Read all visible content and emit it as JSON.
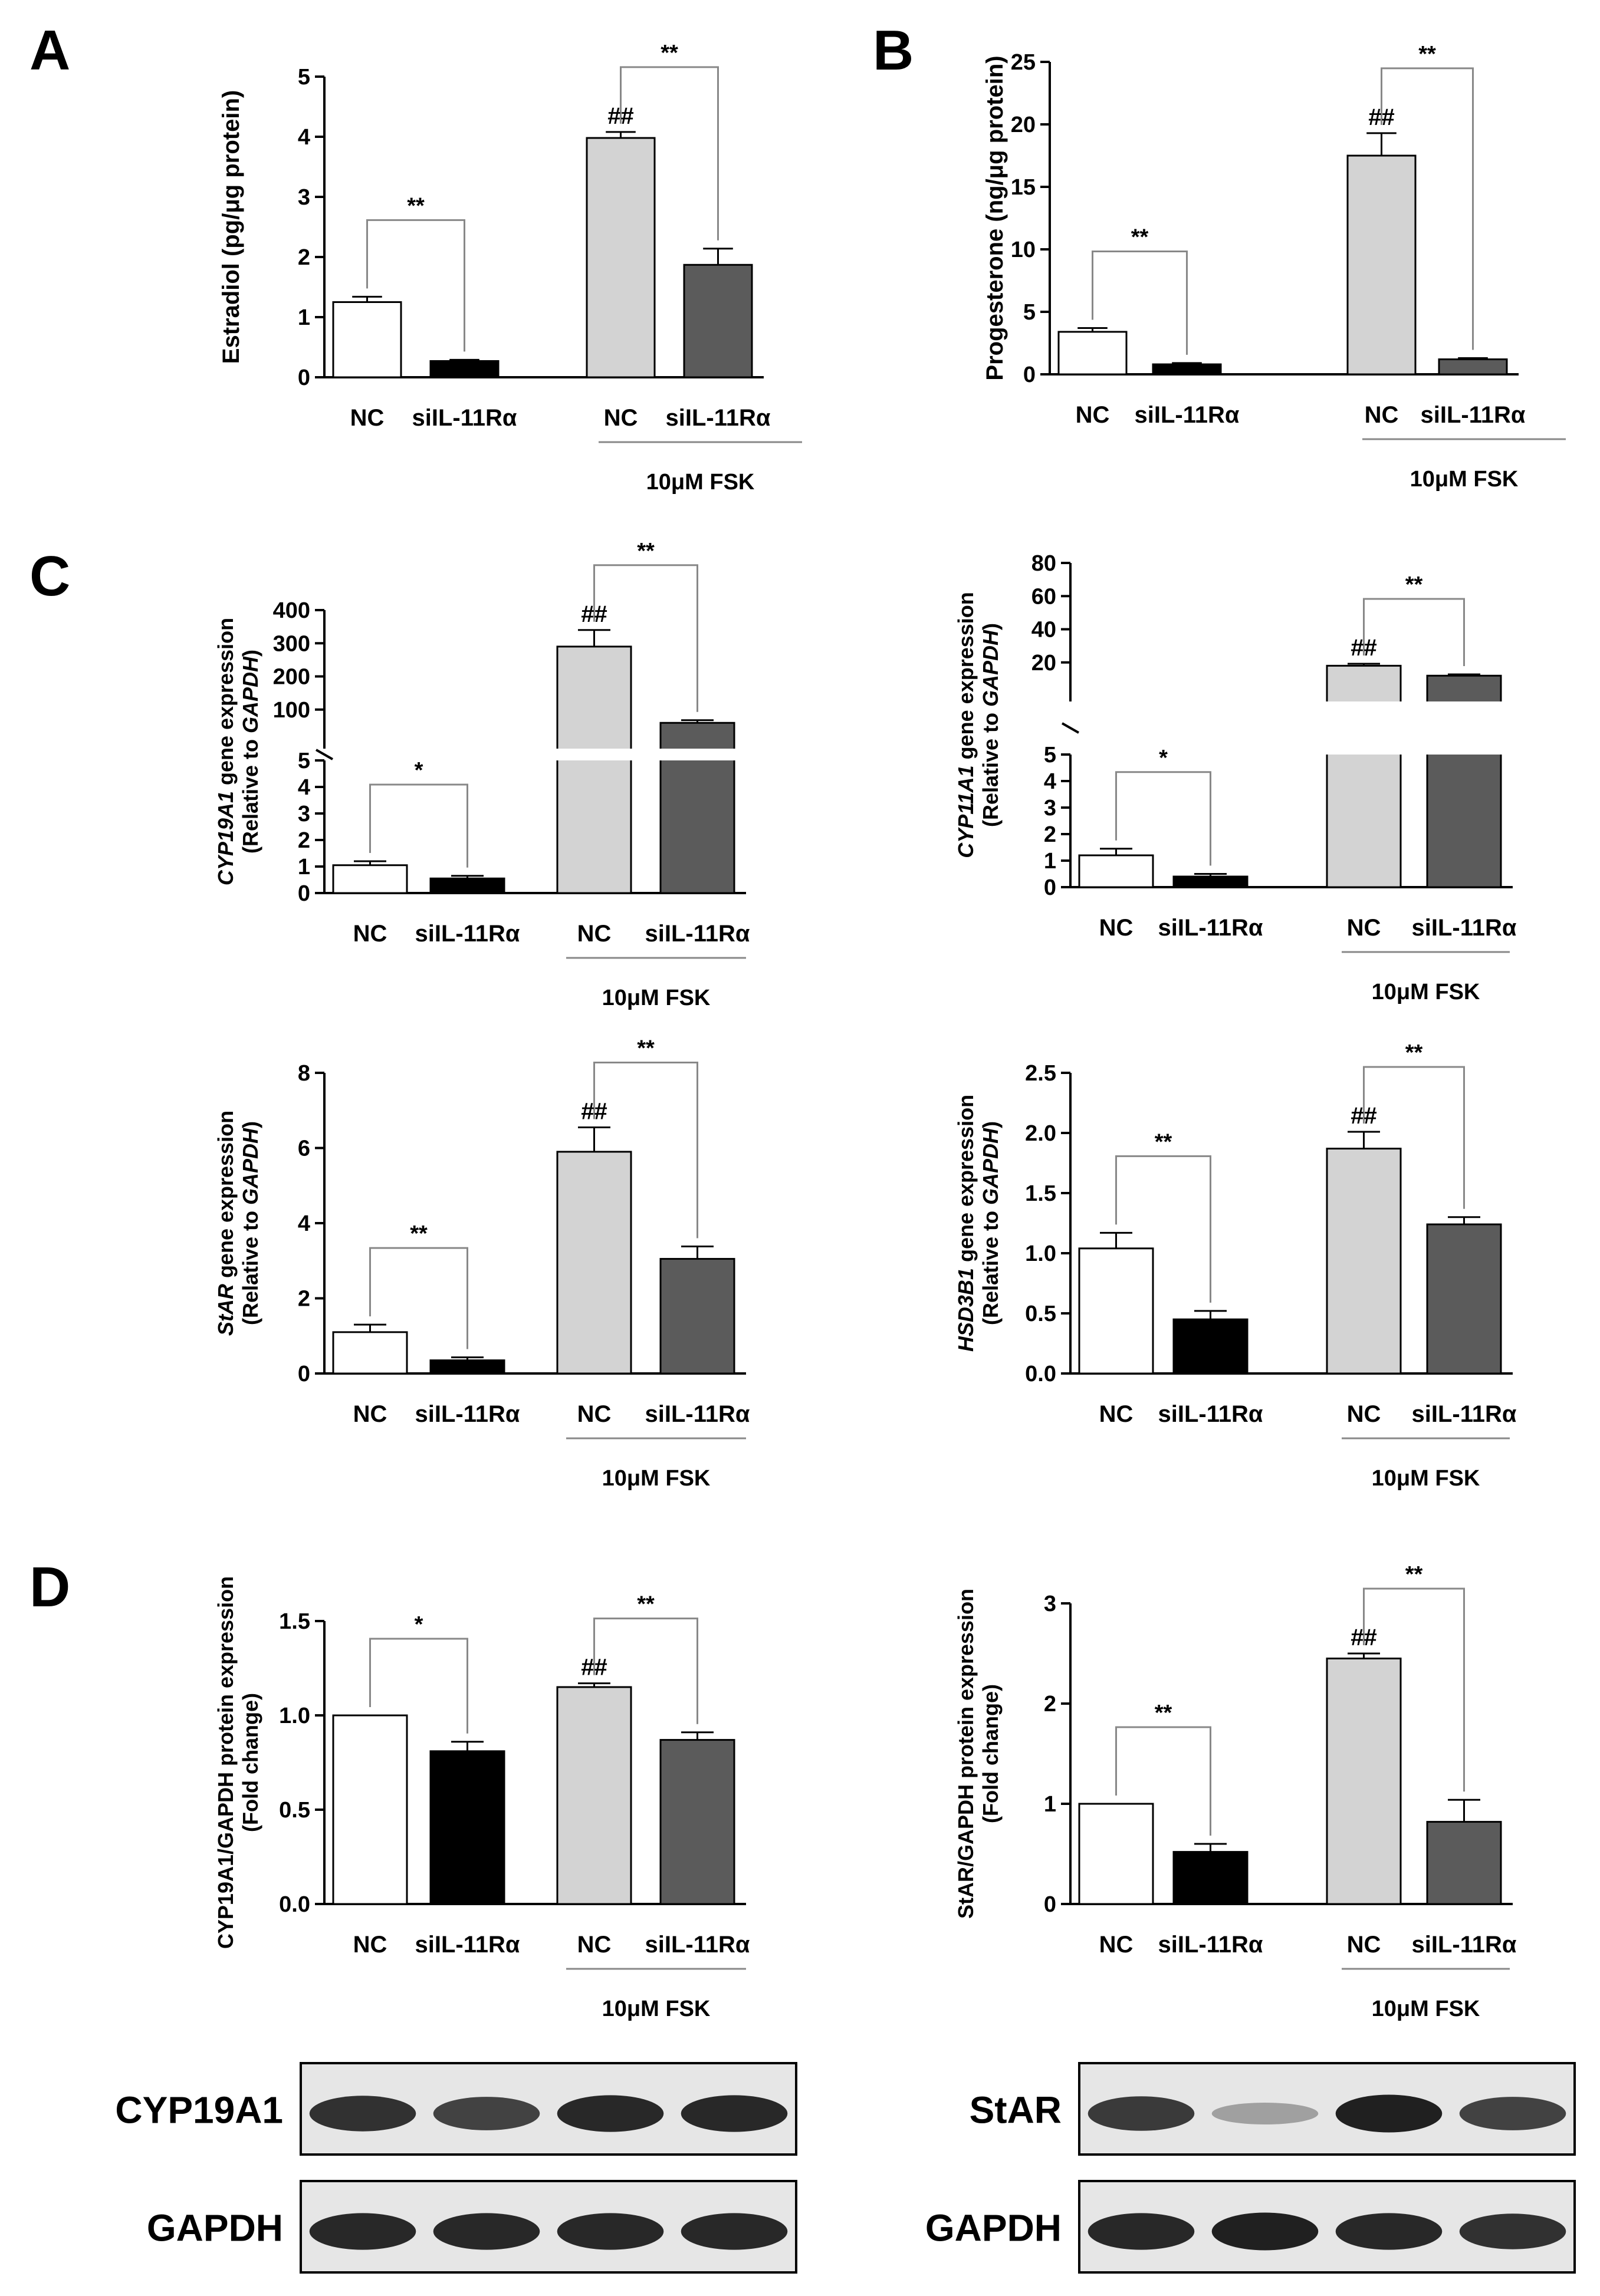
{
  "palette": {
    "NC": "#ffffff",
    "siIL-11Rα": "#000000",
    "NC_FSK": "#d3d3d3",
    "siIL-11Rα_FSK": "#5b5b5b",
    "axis": "#000000",
    "bracket": "#888888"
  },
  "group_note": "10μM FSK",
  "panels": [
    {
      "letter": "A"
    },
    {
      "letter": "B"
    },
    {
      "letter": "C"
    },
    {
      "letter": "D"
    }
  ],
  "chart_data": [
    {
      "id": "estradiol",
      "panel": "A",
      "type": "bar",
      "ylabel_parts": [
        {
          "t": "Estradiol (pg/μg protein)",
          "i": false
        }
      ],
      "categories": [
        "NC",
        "siIL-11Rα",
        "NC",
        "siIL-11Rα"
      ],
      "values": [
        1.25,
        0.27,
        3.98,
        1.87
      ],
      "errors": [
        0.09,
        0.02,
        0.1,
        0.27
      ],
      "ylim": [
        0,
        5
      ],
      "ticks": [
        0,
        1,
        2,
        3,
        4,
        5
      ],
      "tick_labels": [
        "0",
        "1",
        "2",
        "3",
        "4",
        "5"
      ],
      "annotations": [
        {
          "text": "**",
          "between": [
            0,
            1
          ]
        },
        {
          "text": "**",
          "between": [
            2,
            3
          ]
        },
        {
          "text": "##",
          "on": 2
        }
      ]
    },
    {
      "id": "progesterone",
      "panel": "B",
      "type": "bar",
      "ylabel_parts": [
        {
          "t": "Progesterone (ng/μg protein)",
          "i": false
        }
      ],
      "categories": [
        "NC",
        "siIL-11Rα",
        "NC",
        "siIL-11Rα"
      ],
      "values": [
        3.4,
        0.8,
        17.5,
        1.2
      ],
      "errors": [
        0.3,
        0.1,
        1.8,
        0.1
      ],
      "ylim": [
        0,
        25
      ],
      "ticks": [
        0,
        5,
        10,
        15,
        20,
        25
      ],
      "tick_labels": [
        "0",
        "5",
        "10",
        "15",
        "20",
        "25"
      ],
      "annotations": [
        {
          "text": "**",
          "between": [
            0,
            1
          ]
        },
        {
          "text": "**",
          "between": [
            2,
            3
          ]
        },
        {
          "text": "##",
          "on": 2
        }
      ]
    },
    {
      "id": "cyp19a1-gene",
      "panel": "C",
      "type": "bar",
      "broken_axis": true,
      "ylabel_parts": [
        {
          "t": "CYP19A1",
          "i": true
        },
        {
          "t": " gene expression",
          "i": false
        }
      ],
      "ylabel2_parts": [
        {
          "t": "(Relative to ",
          "i": false
        },
        {
          "t": "GAPDH",
          "i": true
        },
        {
          "t": ")",
          "i": false
        }
      ],
      "categories": [
        "NC",
        "siIL-11Rα",
        "NC",
        "siIL-11Rα"
      ],
      "values": [
        1.05,
        0.55,
        290,
        60
      ],
      "errors": [
        0.15,
        0.1,
        50,
        8
      ],
      "lower": {
        "ylim": [
          0,
          5
        ],
        "ticks": [
          0,
          1,
          2,
          3,
          4,
          5
        ],
        "tick_labels": [
          "0",
          "1",
          "2",
          "3",
          "4",
          "5"
        ]
      },
      "upper": {
        "ylim": [
          0,
          400
        ],
        "ticks": [
          100,
          200,
          300,
          400
        ],
        "tick_labels": [
          "100",
          "200",
          "300",
          "400"
        ]
      },
      "annotations": [
        {
          "text": "*",
          "between": [
            0,
            1
          ]
        },
        {
          "text": "**",
          "between": [
            2,
            3
          ]
        },
        {
          "text": "##",
          "on": 2
        }
      ]
    },
    {
      "id": "cyp11a1-gene",
      "panel": "C",
      "type": "bar",
      "broken_axis": true,
      "ylabel_parts": [
        {
          "t": "CYP11A1",
          "i": true
        },
        {
          "t": " gene expression",
          "i": false
        }
      ],
      "ylabel2_parts": [
        {
          "t": "(Relative to ",
          "i": false
        },
        {
          "t": "GAPDH",
          "i": true
        },
        {
          "t": ")",
          "i": false
        }
      ],
      "categories": [
        "NC",
        "siIL-11Rα",
        "NC",
        "siIL-11Rα"
      ],
      "values": [
        1.2,
        0.4,
        18,
        12
      ],
      "errors": [
        0.25,
        0.1,
        1.2,
        0.8
      ],
      "lower": {
        "ylim": [
          0,
          5
        ],
        "ticks": [
          0,
          1,
          2,
          3,
          4,
          5
        ],
        "tick_labels": [
          "0",
          "1",
          "2",
          "3",
          "4",
          "5"
        ]
      },
      "upper": {
        "ylim": [
          0,
          80
        ],
        "ticks": [
          20,
          40,
          60,
          80
        ],
        "tick_labels": [
          "20",
          "40",
          "60",
          "80"
        ]
      },
      "annotations": [
        {
          "text": "*",
          "between": [
            0,
            1
          ]
        },
        {
          "text": "**",
          "between": [
            2,
            3
          ]
        },
        {
          "text": "##",
          "on": 2
        }
      ]
    },
    {
      "id": "star-gene",
      "panel": "C",
      "type": "bar",
      "ylabel_parts": [
        {
          "t": "StAR",
          "i": true
        },
        {
          "t": " gene expression",
          "i": false
        }
      ],
      "ylabel2_parts": [
        {
          "t": "(Relative to ",
          "i": false
        },
        {
          "t": "GAPDH",
          "i": true
        },
        {
          "t": ")",
          "i": false
        }
      ],
      "categories": [
        "NC",
        "siIL-11Rα",
        "NC",
        "siIL-11Rα"
      ],
      "values": [
        1.1,
        0.35,
        5.9,
        3.05
      ],
      "errors": [
        0.2,
        0.08,
        0.65,
        0.33
      ],
      "ylim": [
        0,
        8
      ],
      "ticks": [
        0,
        2,
        4,
        6,
        8
      ],
      "tick_labels": [
        "0",
        "2",
        "4",
        "6",
        "8"
      ],
      "annotations": [
        {
          "text": "**",
          "between": [
            0,
            1
          ]
        },
        {
          "text": "**",
          "between": [
            2,
            3
          ]
        },
        {
          "text": "##",
          "on": 2
        }
      ]
    },
    {
      "id": "hsd3b1-gene",
      "panel": "C",
      "type": "bar",
      "ylabel_parts": [
        {
          "t": "HSD3B1",
          "i": true
        },
        {
          "t": " gene expression",
          "i": false
        }
      ],
      "ylabel2_parts": [
        {
          "t": "(Relative to ",
          "i": false
        },
        {
          "t": "GAPDH",
          "i": true
        },
        {
          "t": ")",
          "i": false
        }
      ],
      "categories": [
        "NC",
        "siIL-11Rα",
        "NC",
        "siIL-11Rα"
      ],
      "values": [
        1.04,
        0.45,
        1.87,
        1.24
      ],
      "errors": [
        0.13,
        0.07,
        0.14,
        0.06
      ],
      "ylim": [
        0,
        2.5
      ],
      "ticks": [
        0,
        0.5,
        1,
        1.5,
        2,
        2.5
      ],
      "tick_labels": [
        "0.0",
        "0.5",
        "1.0",
        "1.5",
        "2.0",
        "2.5"
      ],
      "annotations": [
        {
          "text": "**",
          "between": [
            0,
            1
          ]
        },
        {
          "text": "**",
          "between": [
            2,
            3
          ]
        },
        {
          "text": "##",
          "on": 2
        }
      ]
    },
    {
      "id": "cyp19a1-protein",
      "panel": "D",
      "type": "bar",
      "ylabel_parts": [
        {
          "t": "CYP19A1/GAPDH protein expression",
          "i": false
        }
      ],
      "ylabel2_parts": [
        {
          "t": "(Fold change)",
          "i": false
        }
      ],
      "categories": [
        "NC",
        "siIL-11Rα",
        "NC",
        "siIL-11Rα"
      ],
      "values": [
        1.0,
        0.81,
        1.15,
        0.87
      ],
      "errors": [
        0.0,
        0.05,
        0.02,
        0.04
      ],
      "ylim": [
        0,
        1.5
      ],
      "ticks": [
        0,
        0.5,
        1,
        1.5
      ],
      "tick_labels": [
        "0.0",
        "0.5",
        "1.0",
        "1.5"
      ],
      "annotations": [
        {
          "text": "*",
          "between": [
            0,
            1
          ]
        },
        {
          "text": "**",
          "between": [
            2,
            3
          ]
        },
        {
          "text": "##",
          "on": 2
        }
      ]
    },
    {
      "id": "star-protein",
      "panel": "D",
      "type": "bar",
      "ylabel_parts": [
        {
          "t": "StAR/GAPDH protein expression",
          "i": false
        }
      ],
      "ylabel2_parts": [
        {
          "t": "(Fold change)",
          "i": false
        }
      ],
      "categories": [
        "NC",
        "siIL-11Rα",
        "NC",
        "siIL-11Rα"
      ],
      "values": [
        1.0,
        0.52,
        2.45,
        0.82
      ],
      "errors": [
        0.0,
        0.08,
        0.05,
        0.22
      ],
      "ylim": [
        0,
        3
      ],
      "ticks": [
        0,
        1,
        2,
        3
      ],
      "tick_labels": [
        "0",
        "1",
        "2",
        "3"
      ],
      "annotations": [
        {
          "text": "**",
          "between": [
            0,
            1
          ]
        },
        {
          "text": "**",
          "between": [
            2,
            3
          ]
        },
        {
          "text": "##",
          "on": 2
        }
      ]
    }
  ],
  "blots": [
    {
      "id": "blot-left",
      "rows": [
        {
          "label": "CYP19A1",
          "intensities": [
            0.9,
            0.8,
            0.95,
            0.95
          ]
        },
        {
          "label": "GAPDH",
          "intensities": [
            0.95,
            0.95,
            0.95,
            0.95
          ]
        }
      ]
    },
    {
      "id": "blot-right",
      "rows": [
        {
          "label": "StAR",
          "intensities": [
            0.85,
            0.25,
            1.0,
            0.8
          ]
        },
        {
          "label": "GAPDH",
          "intensities": [
            0.95,
            1.0,
            0.95,
            0.9
          ]
        }
      ]
    }
  ]
}
